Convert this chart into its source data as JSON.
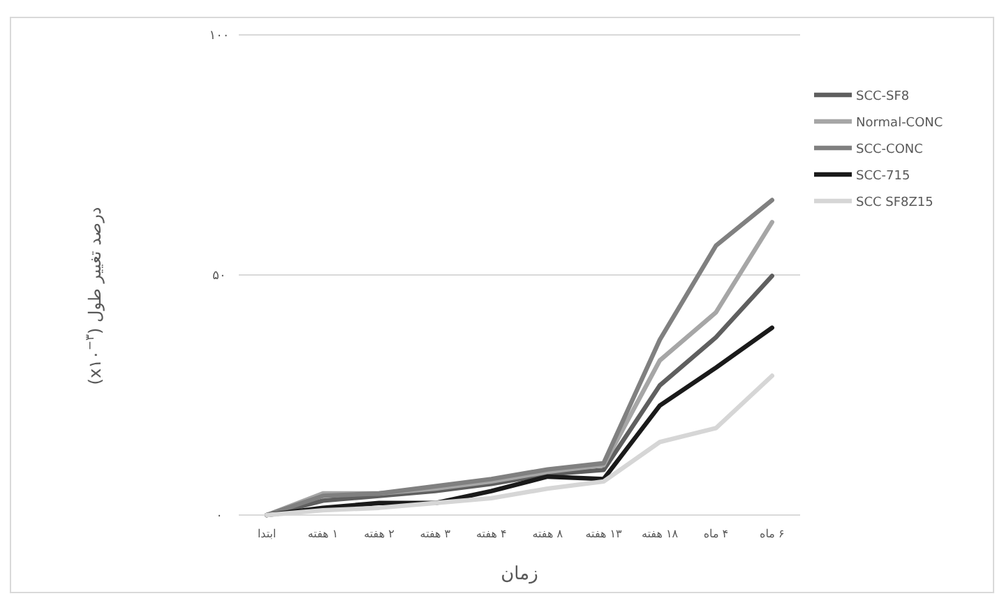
{
  "chart_data": {
    "type": "line",
    "xlabel": "زمان",
    "ylabel": "درصد تغییر طول (x۱۰$^{−۳}$)",
    "categories": [
      "ابتدا",
      "۱ هفته",
      "۲ هفته",
      "۳ هفته",
      "۴ هفته",
      "۸ هفته",
      "۱۳ هفته",
      "۱۸ هفته",
      "۴ ماه",
      "۶ ماه"
    ],
    "series": [
      {
        "name": "SCC-SF8",
        "color": "#5f5f5f",
        "values": [
          0,
          3,
          4,
          5,
          6.5,
          8.5,
          9.4,
          27,
          37,
          49.8
        ]
      },
      {
        "name": "Normal-CONC",
        "color": "#a6a6a6",
        "values": [
          0,
          4.5,
          4.5,
          5.5,
          7,
          9,
          10.4,
          32.2,
          42.2,
          61
        ]
      },
      {
        "name": "SCC-CONC",
        "color": "#808080",
        "values": [
          0,
          4,
          4.5,
          6,
          7.5,
          9.5,
          10.8,
          36.5,
          56.1,
          65.6
        ]
      },
      {
        "name": "SCC-715",
        "color": "#1a1a1a",
        "values": [
          0,
          1.5,
          2.5,
          2.5,
          5,
          8,
          7.5,
          22.8,
          30.7,
          39
        ]
      },
      {
        "name": "SCC SF8Z15",
        "color": "#d6d6d6",
        "values": [
          0,
          1,
          1.5,
          2.5,
          3.5,
          5.5,
          7,
          15.2,
          18.1,
          29
        ]
      }
    ],
    "ylim": [
      0,
      100
    ],
    "yticks": [
      {
        "value": 0,
        "label": "۰"
      },
      {
        "value": 50,
        "label": "۵۰"
      },
      {
        "value": 100,
        "label": "۱۰۰"
      }
    ],
    "grid": "y",
    "legend": "right",
    "marker": "none",
    "line_style": "solid"
  }
}
